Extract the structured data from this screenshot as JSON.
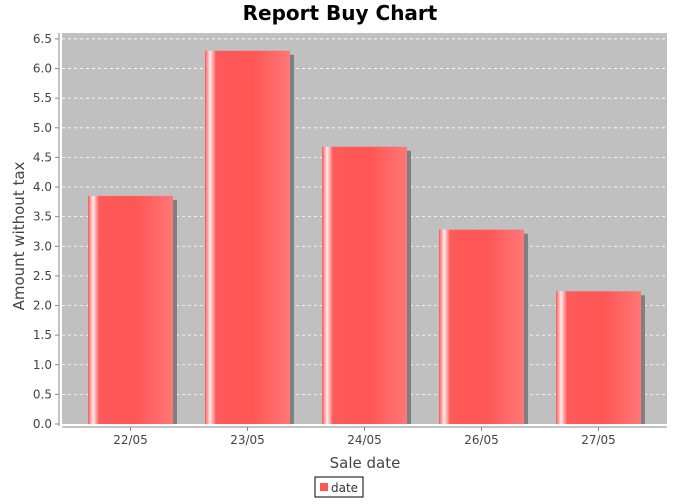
{
  "chart_data": {
    "type": "bar",
    "title": "Report Buy Chart",
    "xlabel": "Sale date",
    "ylabel": "Amount without tax",
    "categories": [
      "22/05",
      "23/05",
      "24/05",
      "26/05",
      "27/05"
    ],
    "series": [
      {
        "name": "date",
        "values": [
          3.85,
          6.3,
          4.68,
          3.28,
          2.24
        ]
      }
    ],
    "ylim": [
      0,
      6.5
    ],
    "yticks": [
      "0.0",
      "0.5",
      "1.0",
      "1.5",
      "2.0",
      "2.5",
      "3.0",
      "3.5",
      "4.0",
      "4.5",
      "5.0",
      "5.5",
      "6.0",
      "6.5"
    ],
    "grid": true,
    "legend_position": "bottom",
    "colors": {
      "plot_background": "#c0c0c0",
      "bar": "#ff5555",
      "shadow": "#808080",
      "gridline": "#ffffff"
    }
  }
}
